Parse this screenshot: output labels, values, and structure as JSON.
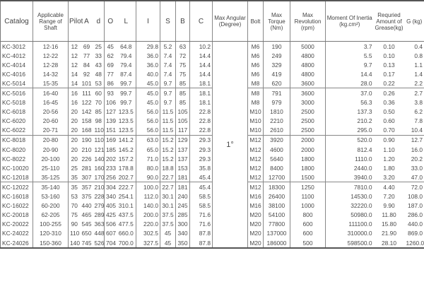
{
  "headers": {
    "catalog": "Catalog",
    "range": "Applicable Range of Shaft",
    "pilot": "Pilot",
    "a": "A",
    "d": "d",
    "o": "O",
    "l": "L",
    "i": "I",
    "s": "S",
    "b": "B",
    "c": "C",
    "angle": "Max Angular (Degree)",
    "bolt": "Bolt",
    "torque": "Max Torque (Nm)",
    "rev": "Max Revolution (rpm)",
    "inertia": "Moment Of Inertia (kg.cm²)",
    "grease": "Requried Amount of Grease(kg)",
    "g": "G (kg)"
  },
  "max_angular": "1°",
  "rows": [
    [
      "KC-3012",
      "12-16",
      "12",
      "69",
      "25",
      "45",
      "64.8",
      "29.8",
      "5.2",
      "63",
      "10.2",
      "M6",
      "190",
      "5000",
      "3.7",
      "0.10",
      "0.4"
    ],
    [
      "KC-4012",
      "12-22",
      "12",
      "77",
      "33",
      "62",
      "79.4",
      "36.0",
      "7.4",
      "72",
      "14.4",
      "M6",
      "249",
      "4800",
      "5.5",
      "0.10",
      "0.8"
    ],
    [
      "KC-4014",
      "12-28",
      "12",
      "84",
      "43",
      "69",
      "79.4",
      "36.0",
      "7.4",
      "75",
      "14.4",
      "M6",
      "329",
      "4800",
      "9.7",
      "0.13",
      "1.1"
    ],
    [
      "KC-4016",
      "14-32",
      "14",
      "92",
      "48",
      "77",
      "87.4",
      "40.0",
      "7.4",
      "75",
      "14.4",
      "M6",
      "419",
      "4800",
      "14.4",
      "0.17",
      "1.4"
    ],
    [
      "KC-5014",
      "15-35",
      "14",
      "101",
      "53",
      "86",
      "99.7",
      "45.0",
      "9.7",
      "85",
      "18.1",
      "M8",
      "620",
      "3600",
      "28.0",
      "0.22",
      "2.2"
    ],
    [
      "KC-5016",
      "16-40",
      "16",
      "111",
      "60",
      "93",
      "99.7",
      "45.0",
      "9.7",
      "85",
      "18.1",
      "M8",
      "791",
      "3600",
      "37.0",
      "0.26",
      "2.7"
    ],
    [
      "KC-5018",
      "16-45",
      "16",
      "122",
      "70",
      "106",
      "99.7",
      "45.0",
      "9.7",
      "85",
      "18.1",
      "M8",
      "979",
      "3000",
      "56.3",
      "0.36",
      "3.8"
    ],
    [
      "KC-6018",
      "20-56",
      "20",
      "142",
      "85",
      "127",
      "123.5",
      "56.0",
      "11.5",
      "105",
      "22.8",
      "M10",
      "1810",
      "2500",
      "137.3",
      "0.50",
      "6.2"
    ],
    [
      "KC-6020",
      "20-60",
      "20",
      "158",
      "98",
      "139",
      "123.5",
      "56.0",
      "11.5",
      "105",
      "22.8",
      "M10",
      "2210",
      "2500",
      "210.2",
      "0.60",
      "7.8"
    ],
    [
      "KC-6022",
      "20-71",
      "20",
      "168",
      "110",
      "151",
      "123.5",
      "56.0",
      "11.5",
      "117",
      "22.8",
      "M10",
      "2610",
      "2500",
      "295.0",
      "0.70",
      "10.4"
    ],
    [
      "KC-8018",
      "20-80",
      "20",
      "190",
      "110",
      "169",
      "141.2",
      "63.0",
      "15.2",
      "129",
      "29.3",
      "M12",
      "3920",
      "2000",
      "520.0",
      "0.90",
      "12.7"
    ],
    [
      "KC-8020",
      "20-90",
      "20",
      "210",
      "121",
      "185",
      "145.2",
      "65.0",
      "15.2",
      "137",
      "29.3",
      "M12",
      "4600",
      "2000",
      "812.4",
      "1.10",
      "16.0"
    ],
    [
      "KC-8022",
      "20-100",
      "20",
      "226",
      "140",
      "202",
      "157.2",
      "71.0",
      "15.2",
      "137",
      "29.3",
      "M12",
      "5640",
      "1800",
      "1110.0",
      "1.20",
      "20.2"
    ],
    [
      "KC-10020",
      "25-110",
      "25",
      "281",
      "160",
      "233",
      "178.8",
      "80.0",
      "18.8",
      "153",
      "35.8",
      "M12",
      "8400",
      "1800",
      "2440.0",
      "1.80",
      "33.0"
    ],
    [
      "KC-12018",
      "35-125",
      "35",
      "307",
      "170",
      "256",
      "202.7",
      "90.0",
      "22.7",
      "181",
      "45.4",
      "M12",
      "12700",
      "1500",
      "3940.0",
      "3.20",
      "47.0"
    ],
    [
      "KC-12022",
      "35-140",
      "35",
      "357",
      "210",
      "304",
      "222.7",
      "100.0",
      "22.7",
      "181",
      "45.4",
      "M12",
      "18300",
      "1250",
      "7810.0",
      "4.40",
      "72.0"
    ],
    [
      "KC-16018",
      "53-160",
      "53",
      "375",
      "228",
      "340",
      "254.1",
      "112.0",
      "30.1",
      "240",
      "58.5",
      "M16",
      "26400",
      "1100",
      "14530.0",
      "7.20",
      "108.0"
    ],
    [
      "KC-16022",
      "60-200",
      "70",
      "440",
      "279",
      "405",
      "310.1",
      "140.0",
      "30.1",
      "245",
      "58.5",
      "M16",
      "38100",
      "1000",
      "32220.0",
      "9.90",
      "187.0"
    ],
    [
      "KC-20018",
      "62-205",
      "75",
      "465",
      "289",
      "425",
      "437.5",
      "200.0",
      "37.5",
      "285",
      "71.6",
      "M20",
      "54100",
      "800",
      "50980.0",
      "11.80",
      "286.0"
    ],
    [
      "KC-20022",
      "100-255",
      "90",
      "545",
      "363",
      "506",
      "477.5",
      "220.0",
      "37.5",
      "300",
      "71.6",
      "M20",
      "77800",
      "600",
      "111100.0",
      "15.80",
      "440.0"
    ],
    [
      "KC-24022",
      "120-310",
      "110",
      "650",
      "448",
      "607",
      "660.0",
      "302.5",
      "45",
      "340",
      "87.8",
      "M20",
      "137000",
      "600",
      "310000.0",
      "21.90",
      "869.0"
    ],
    [
      "KC-24026",
      "150-360",
      "140",
      "745",
      "526",
      "704",
      "700.0",
      "327.5",
      "45",
      "350",
      "87.8",
      "M20",
      "186000",
      "500",
      "598500.0",
      "28.10",
      "1260.0"
    ]
  ]
}
